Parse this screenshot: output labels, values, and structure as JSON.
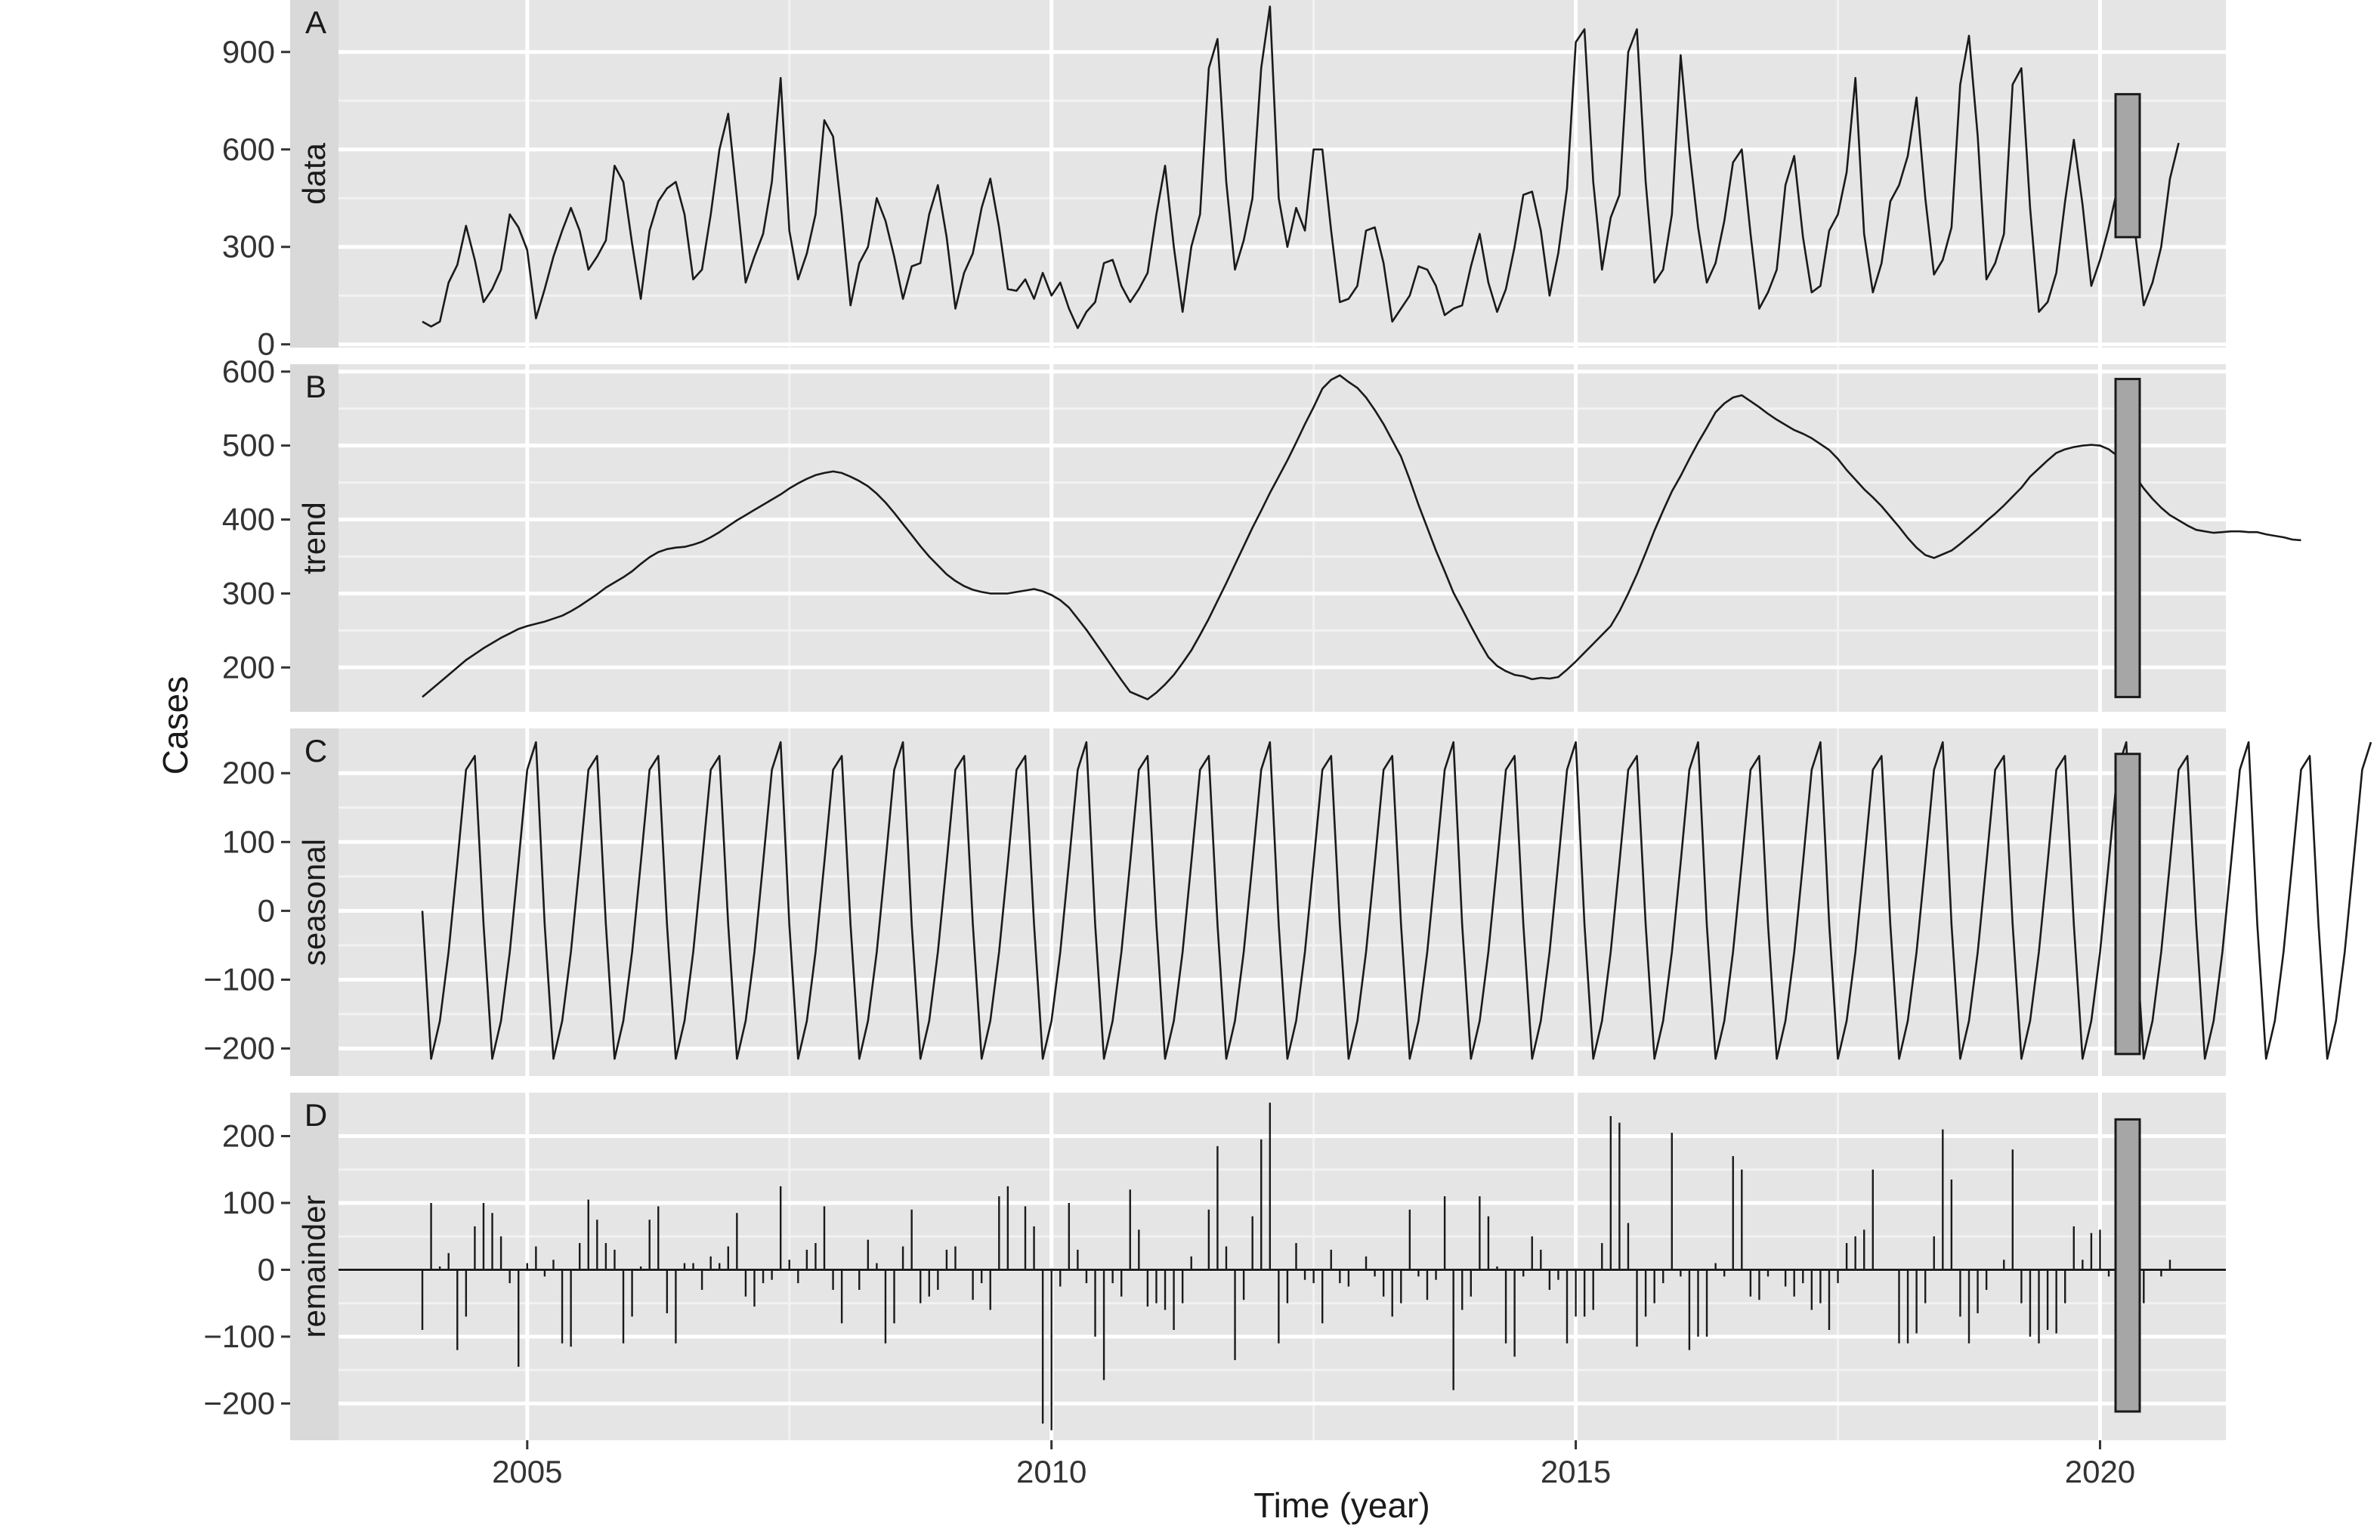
{
  "chart_data": {
    "type": "line",
    "xlabel": "Time (year)",
    "ylabel": "Cases",
    "xlim": [
      2003.2,
      2021.2
    ],
    "x_ticks": [
      2005,
      2010,
      2015,
      2020
    ],
    "x_tick_labels": [
      "2005",
      "2010",
      "2015",
      "2020"
    ],
    "start": 2004.0,
    "step": 0.0833333,
    "grid": true,
    "panels": [
      {
        "letter": "A",
        "strip": "data",
        "mark": "line",
        "ylim": [
          -10,
          1060
        ],
        "y_ticks": [
          0,
          300,
          600,
          900
        ],
        "y_tick_labels": [
          "0",
          "300",
          "600",
          "900"
        ],
        "range_bar": [
          330,
          770
        ],
        "values": [
          70,
          55,
          70,
          190,
          245,
          365,
          260,
          130,
          170,
          230,
          400,
          360,
          290,
          80,
          170,
          270,
          350,
          420,
          350,
          230,
          270,
          320,
          550,
          500,
          310,
          140,
          350,
          440,
          480,
          500,
          400,
          200,
          230,
          400,
          600,
          710,
          450,
          190,
          270,
          340,
          500,
          820,
          350,
          200,
          280,
          400,
          690,
          640,
          400,
          120,
          250,
          300,
          450,
          380,
          270,
          140,
          240,
          250,
          400,
          490,
          330,
          110,
          220,
          280,
          420,
          510,
          360,
          170,
          165,
          200,
          140,
          220,
          150,
          190,
          110,
          50,
          100,
          130,
          250,
          260,
          180,
          130,
          170,
          220,
          400,
          550,
          300,
          100,
          300,
          400,
          850,
          940,
          500,
          230,
          320,
          450,
          850,
          1040,
          450,
          300,
          420,
          350,
          600,
          600,
          350,
          130,
          140,
          180,
          350,
          360,
          250,
          70,
          110,
          150,
          240,
          230,
          180,
          90,
          110,
          120,
          240,
          340,
          190,
          100,
          170,
          300,
          460,
          470,
          350,
          150,
          280,
          480,
          930,
          970,
          500,
          230,
          390,
          460,
          900,
          970,
          500,
          190,
          230,
          400,
          890,
          600,
          360,
          190,
          250,
          380,
          560,
          600,
          340,
          110,
          160,
          230,
          490,
          580,
          330,
          160,
          180,
          350,
          400,
          530,
          820,
          340,
          160,
          250,
          440,
          490,
          580,
          760,
          450,
          215,
          260,
          360,
          800,
          950,
          640,
          200,
          250,
          340,
          800,
          850,
          420,
          100,
          130,
          220,
          440,
          630,
          430,
          180,
          260,
          360,
          480,
          590,
          350,
          120,
          190,
          300,
          510,
          620
        ]
      },
      {
        "letter": "B",
        "strip": "trend",
        "mark": "line",
        "ylim": [
          140,
          610
        ],
        "y_ticks": [
          200,
          300,
          400,
          500,
          600
        ],
        "y_tick_labels": [
          "200",
          "300",
          "400",
          "500",
          "600"
        ],
        "range_bar": [
          160,
          590
        ],
        "values": [
          160,
          170,
          180,
          190,
          200,
          210,
          218,
          226,
          233,
          240,
          246,
          252,
          256,
          259,
          262,
          266,
          270,
          276,
          283,
          291,
          299,
          308,
          315,
          322,
          330,
          340,
          349,
          356,
          360,
          362,
          363,
          366,
          370,
          376,
          383,
          391,
          399,
          406,
          413,
          420,
          427,
          434,
          442,
          449,
          455,
          460,
          463,
          465,
          463,
          458,
          452,
          445,
          435,
          423,
          409,
          394,
          379,
          364,
          350,
          338,
          326,
          317,
          310,
          305,
          302,
          300,
          300,
          300,
          302,
          304,
          306,
          303,
          298,
          291,
          281,
          266,
          251,
          234,
          217,
          200,
          183,
          167,
          162,
          157,
          166,
          177,
          190,
          206,
          223,
          244,
          266,
          290,
          314,
          339,
          364,
          389,
          412,
          436,
          458,
          480,
          504,
          529,
          552,
          577,
          589,
          595,
          586,
          578,
          565,
          548,
          529,
          507,
          485,
          454,
          420,
          389,
          358,
          330,
          301,
          279,
          256,
          234,
          214,
          202,
          195,
          190,
          188,
          184,
          186,
          185,
          187,
          197,
          208,
          220,
          232,
          244,
          256,
          276,
          300,
          326,
          355,
          385,
          412,
          438,
          459,
          482,
          504,
          524,
          545,
          557,
          565,
          568,
          560,
          552,
          543,
          535,
          528,
          521,
          516,
          510,
          502,
          494,
          482,
          467,
          454,
          441,
          430,
          418,
          404,
          390,
          375,
          362,
          352,
          348,
          353,
          358,
          367,
          377,
          387,
          398,
          408,
          419,
          431,
          443,
          458,
          469,
          480,
          490,
          495,
          498,
          500,
          501,
          500,
          495,
          486,
          474,
          459,
          442,
          428,
          416,
          406,
          399,
          392,
          386,
          384,
          382,
          383,
          384,
          384,
          383,
          383,
          380,
          378,
          376,
          373,
          372
        ]
      },
      {
        "letter": "C",
        "strip": "seasonal",
        "mark": "line",
        "ylim": [
          -240,
          265
        ],
        "y_ticks": [
          -200,
          -100,
          0,
          100,
          200
        ],
        "y_tick_labels": [
          "−200",
          "−100",
          "0",
          "100",
          "200"
        ],
        "range_bar": [
          -208,
          228
        ],
        "values": [
          0,
          -215,
          -160,
          -60,
          70,
          205,
          225,
          -20,
          -215,
          -160,
          -60,
          70,
          205,
          245,
          -20,
          -215,
          -160,
          -60,
          70,
          205,
          225,
          -20,
          -215,
          -160,
          -60,
          70,
          205,
          225,
          -20,
          -215,
          -160,
          -60,
          70,
          205,
          225,
          -20,
          -215,
          -160,
          -60,
          70,
          205,
          245,
          -20,
          -215,
          -160,
          -60,
          70,
          205,
          225,
          -20,
          -215,
          -160,
          -60,
          70,
          205,
          245,
          -20,
          -215,
          -160,
          -60,
          70,
          205,
          225,
          -20,
          -215,
          -160,
          -60,
          70,
          205,
          225,
          -20,
          -215,
          -160,
          -60,
          70,
          205,
          245,
          -20,
          -215,
          -160,
          -60,
          70,
          205,
          225,
          -20,
          -215,
          -160,
          -60,
          70,
          205,
          225,
          -20,
          -215,
          -160,
          -60,
          70,
          205,
          245,
          -20,
          -215,
          -160,
          -60,
          70,
          205,
          225,
          -20,
          -215,
          -160,
          -60,
          70,
          205,
          225,
          -20,
          -215,
          -160,
          -60,
          70,
          205,
          245,
          -20,
          -215,
          -160,
          -60,
          70,
          205,
          225,
          -20,
          -215,
          -160,
          -60,
          70,
          205,
          245,
          -20,
          -215,
          -160,
          -60,
          70,
          205,
          225,
          -20,
          -215,
          -160,
          -60,
          70,
          205,
          245,
          -20,
          -215,
          -160,
          -60,
          70,
          205,
          225,
          -20,
          -215,
          -160,
          -60,
          70,
          205,
          245,
          -20,
          -215,
          -160,
          -60,
          70,
          205,
          225,
          -20,
          -215,
          -160,
          -60,
          70,
          205,
          245,
          -20,
          -215,
          -160,
          -60,
          70,
          205,
          225,
          -20,
          -215,
          -160,
          -60,
          70,
          205,
          225,
          -20,
          -215,
          -160,
          -60,
          70,
          205,
          245,
          -20,
          -215,
          -160,
          -60,
          70,
          205,
          225,
          -20,
          -215,
          -160,
          -60,
          70,
          205,
          245,
          -20,
          -215,
          -160,
          -60,
          70,
          205,
          225,
          -20,
          -215,
          -160,
          -60,
          70,
          205,
          245
        ]
      },
      {
        "letter": "D",
        "strip": "remainder",
        "mark": "spike",
        "ylim": [
          -255,
          265
        ],
        "y_ticks": [
          -200,
          -100,
          0,
          100,
          200
        ],
        "y_tick_labels": [
          "−200",
          "−100",
          "0",
          "100",
          "200"
        ],
        "range_bar": [
          -212,
          225
        ],
        "values": [
          -90,
          100,
          5,
          25,
          -120,
          -70,
          65,
          100,
          85,
          50,
          -20,
          -145,
          10,
          35,
          -10,
          15,
          -110,
          -115,
          40,
          105,
          75,
          40,
          30,
          -110,
          -70,
          5,
          75,
          95,
          -65,
          -110,
          10,
          10,
          -30,
          20,
          10,
          35,
          85,
          -40,
          -55,
          -20,
          -15,
          125,
          15,
          -20,
          30,
          40,
          95,
          -30,
          -80,
          0,
          -30,
          45,
          10,
          -110,
          -80,
          35,
          90,
          -50,
          -40,
          -30,
          30,
          35,
          0,
          -45,
          -20,
          -60,
          110,
          125,
          0,
          95,
          65,
          -230,
          -240,
          -25,
          100,
          30,
          -20,
          -100,
          -165,
          -20,
          -40,
          120,
          60,
          -55,
          -50,
          -60,
          -90,
          -50,
          20,
          0,
          90,
          185,
          35,
          -135,
          -45,
          80,
          195,
          250,
          -110,
          -50,
          40,
          -15,
          -20,
          -80,
          30,
          -20,
          -25,
          0,
          20,
          -10,
          -40,
          -70,
          -50,
          90,
          -10,
          -45,
          -15,
          110,
          -180,
          -60,
          -40,
          110,
          80,
          5,
          -110,
          -130,
          -10,
          50,
          30,
          -30,
          -15,
          -110,
          -70,
          -70,
          -60,
          40,
          230,
          220,
          70,
          -115,
          -70,
          -50,
          -20,
          205,
          -10,
          -120,
          -100,
          -100,
          10,
          -10,
          170,
          150,
          -40,
          -45,
          -10,
          0,
          -25,
          -40,
          -20,
          -60,
          -50,
          -90,
          -20,
          40,
          50,
          60,
          150,
          0,
          0,
          -110,
          -110,
          -95,
          -50,
          50,
          210,
          135,
          -70,
          -110,
          -65,
          -30,
          0,
          15,
          180,
          -50,
          -100,
          -110,
          -90,
          -95,
          -50,
          65,
          15,
          55,
          60,
          -10,
          -20,
          -25,
          5,
          -50,
          0,
          -10,
          15
        ]
      }
    ]
  }
}
